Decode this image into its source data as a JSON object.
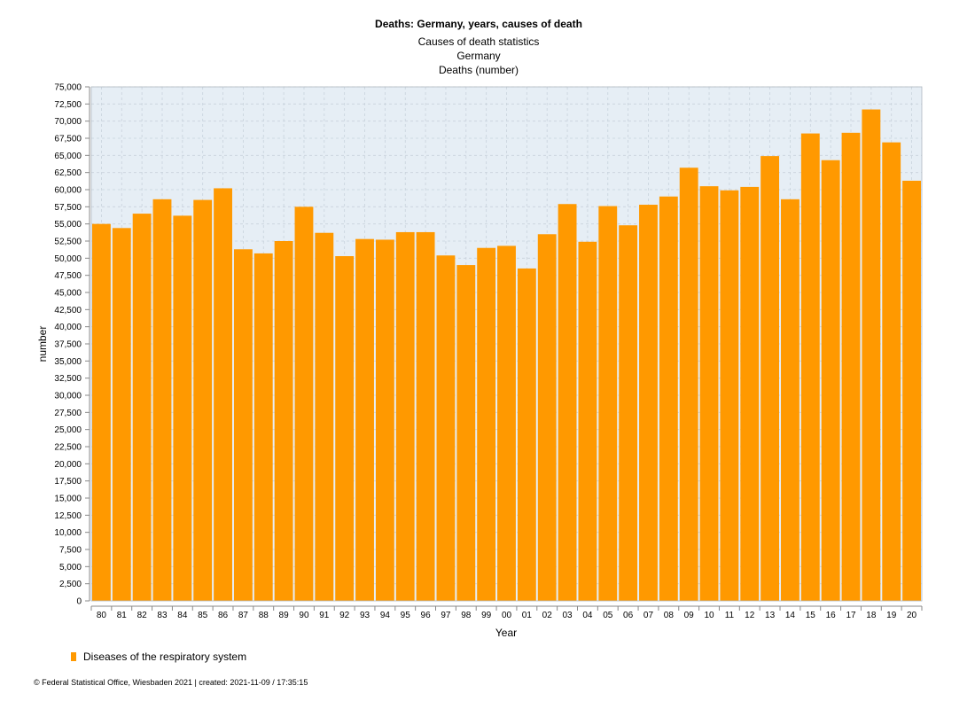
{
  "header": {
    "title": "Deaths: Germany, years, causes of death",
    "subtitle_lines": [
      "Causes of death statistics",
      "Germany",
      "Deaths (number)"
    ]
  },
  "footer": {
    "text": "© Federal Statistical Office, Wiesbaden 2021 | created: 2021-11-09 / 17:35:15"
  },
  "colors": {
    "bar": "#ff9900",
    "plot_bg": "#e6eef5",
    "grid": "#c8d2dc",
    "axis": "#888888"
  },
  "chart_data": {
    "type": "bar",
    "title": "Deaths: Germany, years, causes of death",
    "xlabel": "Year",
    "ylabel": "number",
    "ylim": [
      0,
      75000
    ],
    "ytick_step": 2500,
    "grid": true,
    "legend_position": "bottom-left",
    "categories": [
      "80",
      "81",
      "82",
      "83",
      "84",
      "85",
      "86",
      "87",
      "88",
      "89",
      "90",
      "91",
      "92",
      "93",
      "94",
      "95",
      "96",
      "97",
      "98",
      "99",
      "00",
      "01",
      "02",
      "03",
      "04",
      "05",
      "06",
      "07",
      "08",
      "09",
      "10",
      "11",
      "12",
      "13",
      "14",
      "15",
      "16",
      "17",
      "18",
      "19",
      "20"
    ],
    "series": [
      {
        "name": "Diseases of the respiratory system",
        "values": [
          55000,
          54400,
          56500,
          58600,
          56200,
          58500,
          60200,
          51300,
          50700,
          52500,
          57500,
          53700,
          50300,
          52800,
          52700,
          53800,
          53800,
          50400,
          49000,
          51500,
          51800,
          48500,
          53500,
          57900,
          52400,
          57600,
          54800,
          57800,
          59000,
          63200,
          60500,
          59900,
          60400,
          64900,
          58600,
          68200,
          64300,
          68300,
          71700,
          66900,
          61300
        ]
      }
    ]
  }
}
